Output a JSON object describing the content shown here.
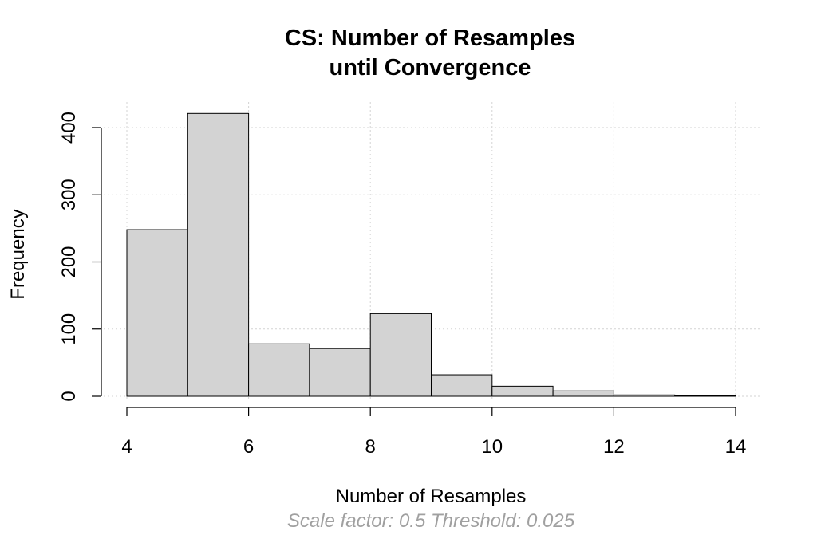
{
  "chart_data": {
    "type": "bar",
    "title_line1": "CS: Number of Resamples",
    "title_line2": "until Convergence",
    "xlabel": "Number of Resamples",
    "ylabel": "Frequency",
    "subtitle": "Scale factor: 0.5 Threshold: 0.025",
    "bins": [
      [
        4,
        5
      ],
      [
        5,
        6
      ],
      [
        6,
        7
      ],
      [
        7,
        8
      ],
      [
        8,
        9
      ],
      [
        9,
        10
      ],
      [
        10,
        11
      ],
      [
        11,
        12
      ],
      [
        12,
        13
      ],
      [
        13,
        14
      ]
    ],
    "values": [
      248,
      421,
      78,
      71,
      123,
      32,
      15,
      8,
      2,
      1
    ],
    "xlim": [
      4,
      14
    ],
    "ylim": [
      0,
      400
    ],
    "x_ticks": [
      4,
      6,
      8,
      10,
      12,
      14
    ],
    "y_ticks": [
      0,
      100,
      200,
      300,
      400
    ],
    "x_tick_labels": [
      "4",
      "6",
      "8",
      "10",
      "12",
      "14"
    ],
    "y_tick_labels": [
      "0",
      "100",
      "200",
      "300",
      "400"
    ],
    "grid": true
  }
}
